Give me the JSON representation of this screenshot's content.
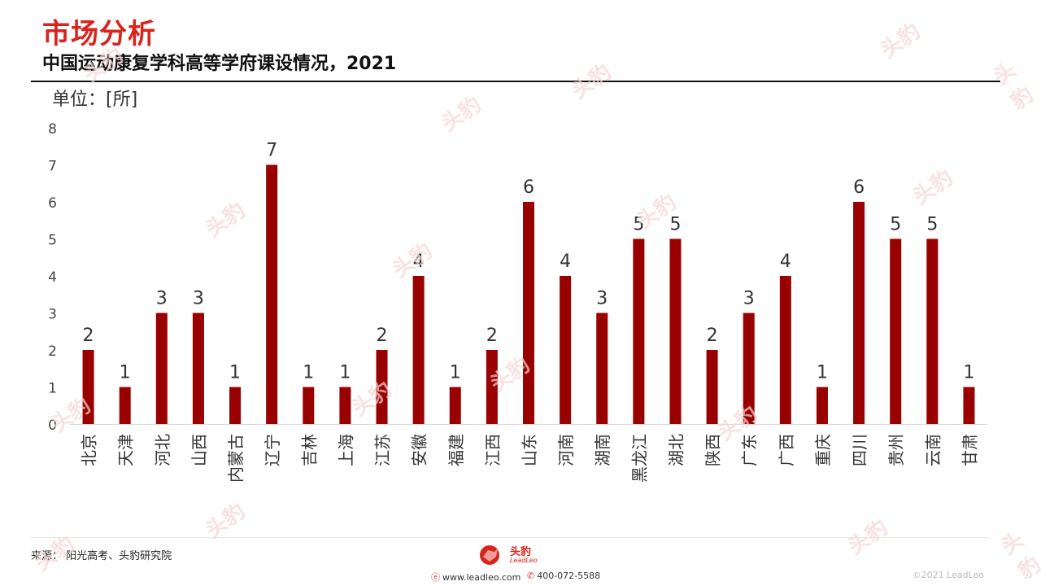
{
  "header": {
    "section_title": "市场分析",
    "subtitle": "中国运动康复学科高等学府课设情况，2021",
    "unit_label": "单位：[所]"
  },
  "chart_data": {
    "type": "bar",
    "categories": [
      "北京",
      "天津",
      "河北",
      "山西",
      "内蒙古",
      "辽宁",
      "吉林",
      "上海",
      "江苏",
      "安徽",
      "福建",
      "江西",
      "山东",
      "河南",
      "湖南",
      "黑龙江",
      "湖北",
      "陕西",
      "广东",
      "广西",
      "重庆",
      "四川",
      "贵州",
      "云南",
      "甘肃"
    ],
    "values": [
      2,
      1,
      3,
      3,
      1,
      7,
      1,
      1,
      2,
      4,
      1,
      2,
      6,
      4,
      3,
      5,
      5,
      2,
      3,
      4,
      1,
      6,
      5,
      5,
      1
    ],
    "ylim": [
      0,
      8
    ],
    "yticks": [
      0,
      1,
      2,
      3,
      4,
      5,
      6,
      7,
      8
    ],
    "bar_color": "#990000",
    "grid": false,
    "data_labels": true
  },
  "footer": {
    "source": "来源：  阳光高考、头豹研究院",
    "logo_text": "头豹",
    "logo_sub": "LeadLeo",
    "website": "www.leadleo.com",
    "phone": "400-072-5588",
    "copyright": "©2021 LeadLeo"
  },
  "watermark": {
    "text": "头豹"
  }
}
